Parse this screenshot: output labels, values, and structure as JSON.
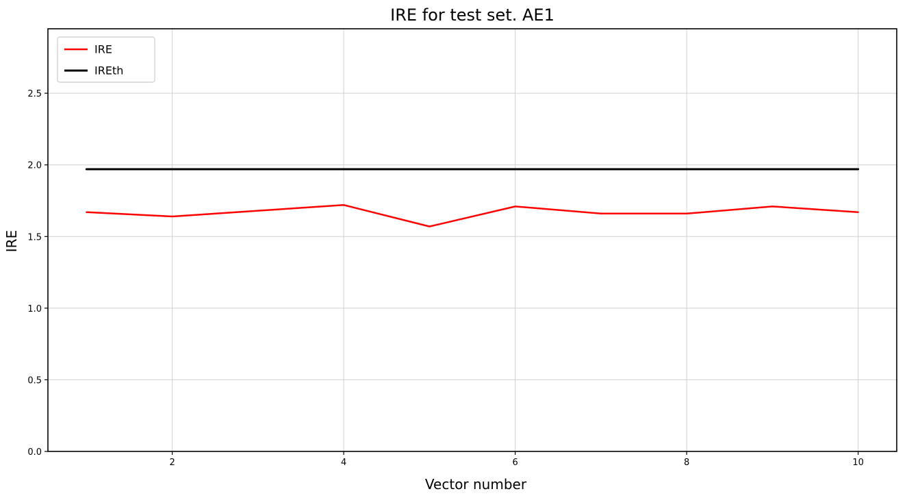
{
  "chart_data": {
    "type": "line",
    "title": "IRE for test set. AE1",
    "xlabel": "Vector number",
    "ylabel": "IRE",
    "x": [
      1,
      2,
      3,
      4,
      5,
      6,
      7,
      8,
      9,
      10
    ],
    "series": [
      {
        "name": "IRE",
        "color": "#ff0000",
        "linewidth": 2.5,
        "values": [
          1.67,
          1.64,
          1.68,
          1.72,
          1.57,
          1.71,
          1.66,
          1.66,
          1.71,
          1.67
        ]
      },
      {
        "name": "IREth",
        "color": "#000000",
        "linewidth": 3,
        "values": [
          1.97,
          1.97,
          1.97,
          1.97,
          1.97,
          1.97,
          1.97,
          1.97,
          1.97,
          1.97
        ]
      }
    ],
    "xlim": [
      0.55,
      10.45
    ],
    "ylim": [
      0,
      2.95
    ],
    "xticks": [
      2,
      4,
      6,
      8,
      10
    ],
    "yticks": [
      0.0,
      0.5,
      1.0,
      1.5,
      2.0,
      2.5
    ],
    "grid": true,
    "grid_color": "#d0d0d0",
    "axes_color": "#000000",
    "legend_position": "upper-left",
    "legend_border_color": "#cccccc"
  }
}
